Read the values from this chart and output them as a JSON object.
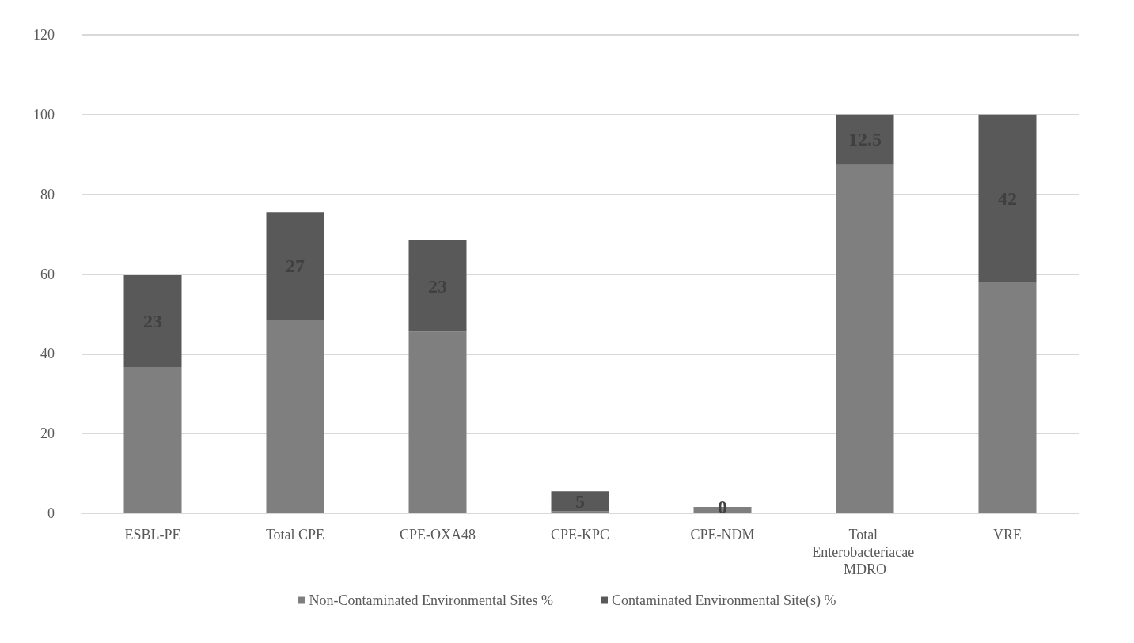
{
  "chart_data": {
    "type": "bar",
    "stacked": true,
    "categories": [
      "ESBL-PE",
      "Total CPE",
      "CPE-OXA48",
      "CPE-KPC",
      "CPE-NDM",
      "Total Enterobacteriacae MDRO",
      "VRE"
    ],
    "series": [
      {
        "name": "Non-Contaminated Environmental Sites %",
        "color": "#7f7f7f",
        "values": [
          36.7,
          48.5,
          45.5,
          0.5,
          1.6,
          87.5,
          58
        ]
      },
      {
        "name": "Contaminated Environmental Site(s) %",
        "color": "#595959",
        "values": [
          23,
          27,
          23,
          5,
          0,
          12.5,
          42
        ],
        "value_labels": [
          "23",
          "27",
          "23",
          "5",
          "0",
          "12.5",
          "42"
        ]
      }
    ],
    "ylim": [
      0,
      120
    ],
    "yticks": [
      0,
      20,
      40,
      60,
      80,
      100,
      120
    ],
    "grid": "y",
    "legend": "bottom"
  }
}
